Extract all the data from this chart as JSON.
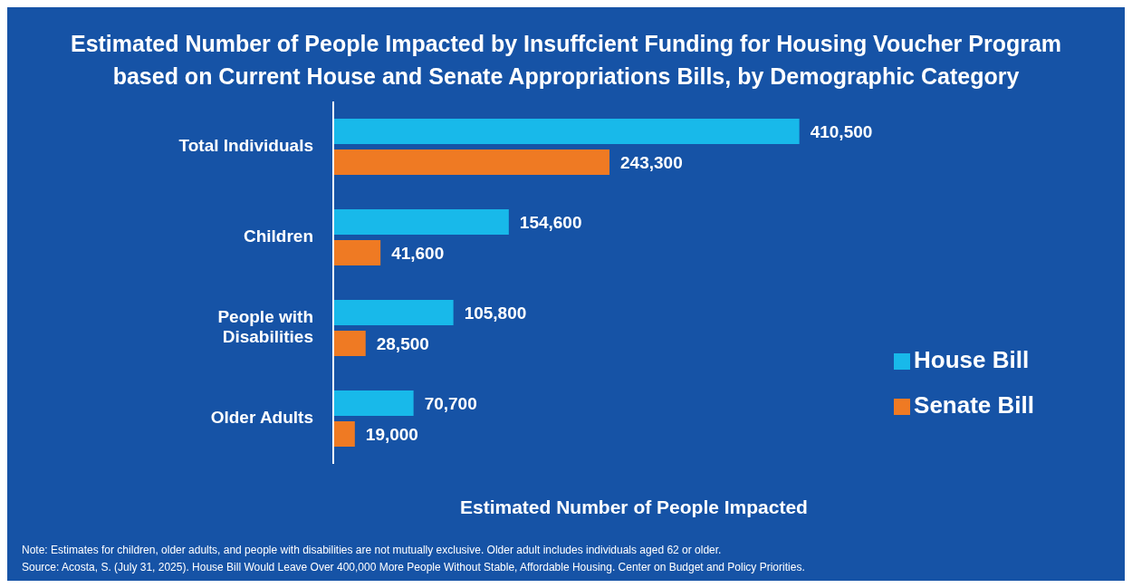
{
  "chart_data": {
    "type": "bar",
    "orientation": "horizontal",
    "title": "Estimated Number of People Impacted by Insuffcient Funding for Housing Voucher Program based on Current House and Senate Appropriations Bills, by Demographic Category",
    "xlabel": "Estimated Number of People Impacted",
    "categories": [
      "Total Individuals",
      "Children",
      "People with Disabilities",
      "Older Adults"
    ],
    "series": [
      {
        "name": "House Bill",
        "color": "#18b9ea",
        "values": [
          410500,
          154600,
          105800,
          70700
        ],
        "value_labels": [
          "410,500",
          "154,600",
          "105,800",
          "70,700"
        ]
      },
      {
        "name": "Senate Bill",
        "color": "#ef7a23",
        "values": [
          243300,
          41600,
          28500,
          19000
        ],
        "value_labels": [
          "243,300",
          "41,600",
          "28,500",
          "19,000"
        ]
      }
    ],
    "legend": "right",
    "grid": false,
    "annotations": [
      "Note: Estimates for children, older adults, and people with disabilities are not mutually exclusive. Older adult includes individuals aged 62 or older.",
      "Source: Acosta, S. (July 31, 2025). House Bill Would Leave Over 400,000 More People Without Stable, Affordable Housing. Center on Budget and Policy Priorities."
    ]
  }
}
